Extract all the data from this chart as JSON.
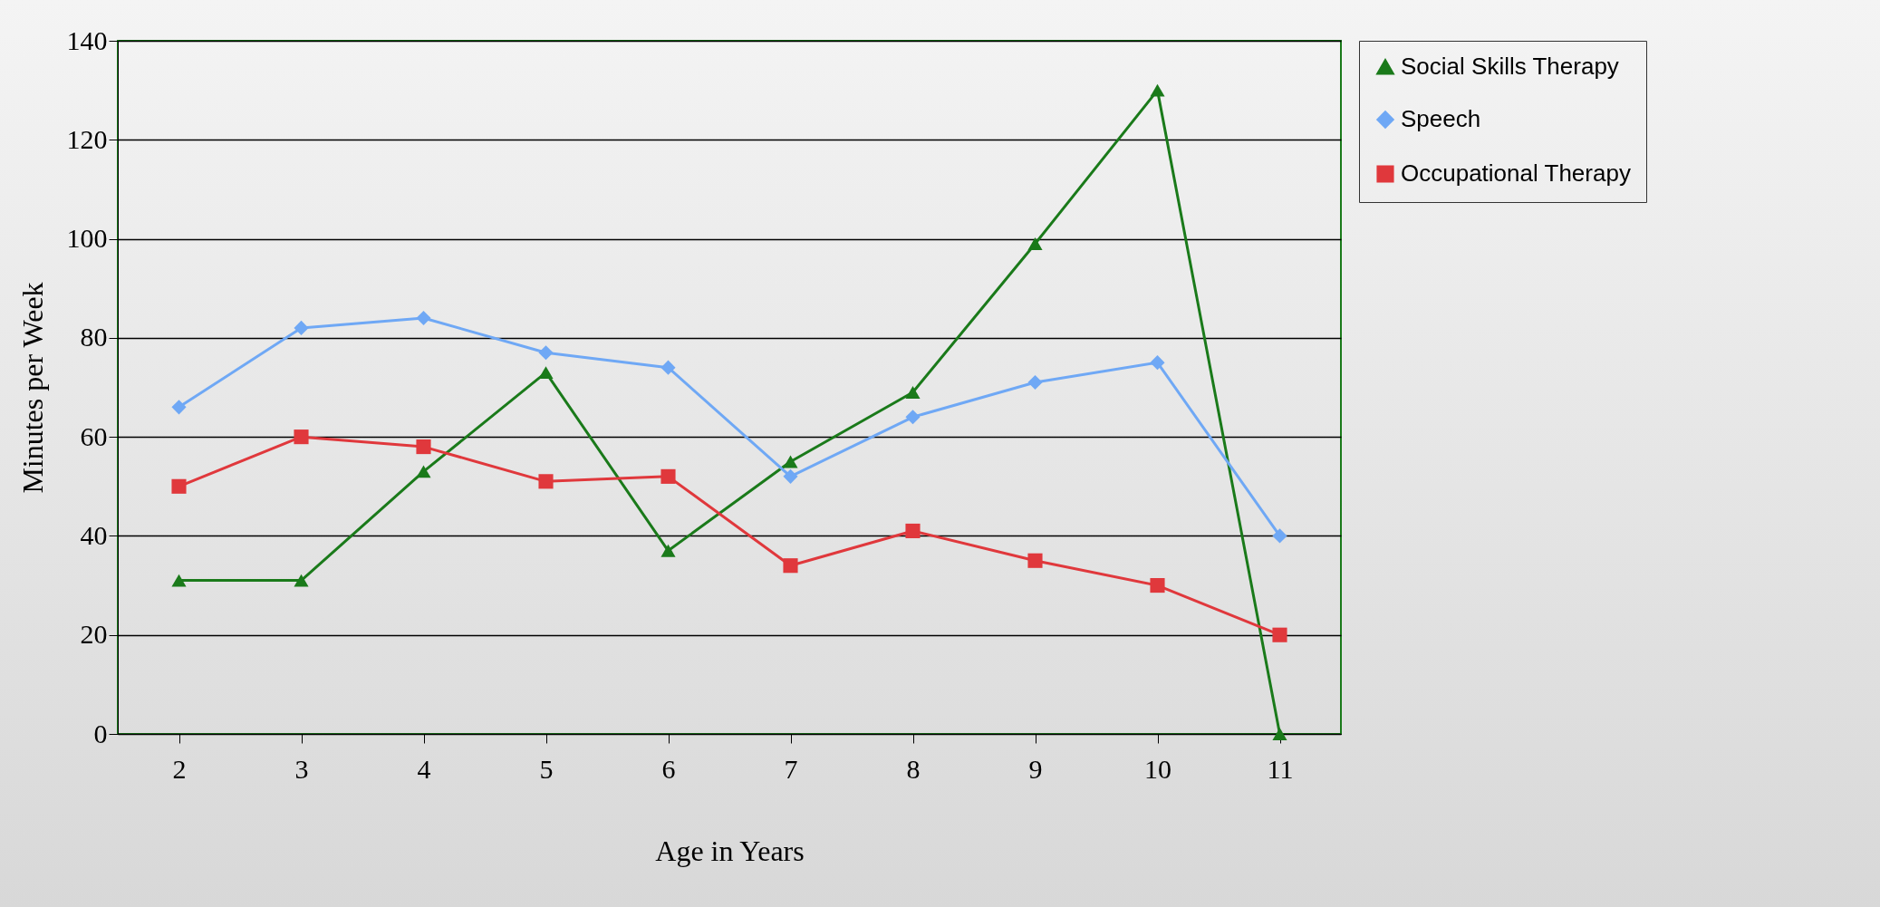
{
  "chart_data": {
    "type": "line",
    "xlabel": "Age in Years",
    "ylabel": "Minutes per Week",
    "categories": [
      "2",
      "3",
      "4",
      "5",
      "6",
      "7",
      "8",
      "9",
      "10",
      "11"
    ],
    "series": [
      {
        "name": "Social Skills Therapy",
        "color": "#1a7a1a",
        "marker": "triangle",
        "values": [
          31,
          31,
          53,
          73,
          37,
          55,
          69,
          99,
          130,
          0
        ]
      },
      {
        "name": "Speech",
        "color": "#6fa8f5",
        "marker": "diamond",
        "values": [
          66,
          82,
          84,
          77,
          74,
          52,
          64,
          71,
          75,
          40
        ]
      },
      {
        "name": "Occupational Therapy",
        "color": "#e0383c",
        "marker": "square",
        "values": [
          50,
          60,
          58,
          51,
          52,
          34,
          41,
          35,
          30,
          20
        ]
      }
    ],
    "ylim": [
      0,
      140
    ],
    "yticks": [
      0,
      20,
      40,
      60,
      80,
      100,
      120,
      140
    ],
    "grid": "y",
    "legend": "right"
  }
}
